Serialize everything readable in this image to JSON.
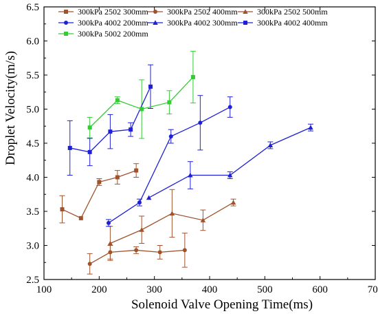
{
  "chart_data": {
    "type": "line",
    "title": "",
    "xlabel": "Solenoid Valve Opening Time(ms)",
    "ylabel": "Droplet Velocity(m/s)",
    "xlim": [
      100,
      700
    ],
    "ylim": [
      2.5,
      6.5
    ],
    "xticks": [
      "100",
      "200",
      "300",
      "400",
      "500",
      "600",
      "700"
    ],
    "yticks": [
      "2.5",
      "3.0",
      "3.5",
      "4.0",
      "4.5",
      "5.0",
      "5.5",
      "6.0",
      "6.5"
    ],
    "grid": false,
    "legend_position": "top-right",
    "series": [
      {
        "name": "300kPa 2502 300mm",
        "color": "#a0522d",
        "marker": "square",
        "x": [
          133,
          167,
          200,
          233,
          267
        ],
        "y": [
          3.53,
          3.4,
          3.93,
          4.0,
          4.1
        ],
        "err": [
          0.2,
          0.0,
          0.05,
          0.1,
          0.1
        ]
      },
      {
        "name": "300kPa 2502 400mm",
        "color": "#a0522d",
        "marker": "circle",
        "x": [
          183,
          220,
          267,
          310,
          355
        ],
        "y": [
          2.73,
          2.9,
          2.93,
          2.9,
          2.93
        ],
        "err": [
          0.15,
          0.1,
          0.05,
          0.1,
          0.25
        ]
      },
      {
        "name": "300kPa 2502 500mm",
        "color": "#a0522d",
        "marker": "triangle",
        "x": [
          220,
          277,
          332,
          388,
          443
        ],
        "y": [
          3.03,
          3.23,
          3.47,
          3.37,
          3.63
        ],
        "err": [
          0.25,
          0.2,
          0.35,
          0.15,
          0.05
        ]
      },
      {
        "name": "300kPa 4002 200mm",
        "color": "#1f1fd6",
        "marker": "circle",
        "x": [
          217,
          273,
          330,
          383,
          437
        ],
        "y": [
          3.33,
          3.63,
          4.6,
          4.8,
          5.03
        ],
        "err": [
          0.05,
          0.05,
          0.1,
          0.4,
          0.15
        ]
      },
      {
        "name": "300kPa 4002 300mm",
        "color": "#1f1fd6",
        "marker": "triangle",
        "x": [
          290,
          365,
          437,
          510,
          583
        ],
        "y": [
          3.7,
          4.03,
          4.03,
          4.47,
          4.73
        ],
        "err": [
          0.0,
          0.2,
          0.05,
          0.05,
          0.05
        ]
      },
      {
        "name": "300kPa 4002 400mm",
        "color": "#1f1fd6",
        "marker": "square",
        "x": [
          147,
          183,
          220,
          257,
          293
        ],
        "y": [
          4.43,
          4.37,
          4.67,
          4.7,
          5.33
        ],
        "err": [
          0.4,
          0.2,
          0.25,
          0.1,
          0.32
        ]
      },
      {
        "name": "300kPa 5002 200mm",
        "color": "#33cc33",
        "marker": "square",
        "x": [
          183,
          233,
          277,
          327,
          370
        ],
        "y": [
          4.73,
          5.13,
          5.0,
          5.1,
          5.47
        ],
        "err": [
          0.15,
          0.05,
          0.43,
          0.17,
          0.38
        ]
      }
    ]
  }
}
